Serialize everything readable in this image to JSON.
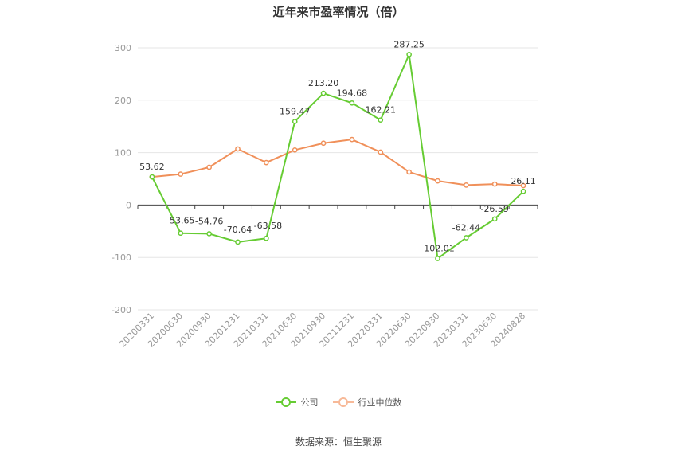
{
  "chart_data": {
    "type": "line",
    "title": "近年来市盈率情况（倍）",
    "categories": [
      "20200331",
      "20200630",
      "20200930",
      "20201231",
      "20210331",
      "20210630",
      "20210930",
      "20211231",
      "20220331",
      "20220630",
      "20220930",
      "20230331",
      "20230630",
      "20240828"
    ],
    "ylim": [
      -200,
      300
    ],
    "yticks": [
      -200,
      -100,
      0,
      100,
      200,
      300
    ],
    "grid": true,
    "legend_position": "bottom-center",
    "series": [
      {
        "name": "公司",
        "color": "#66cc33",
        "values": [
          53.62,
          -53.65,
          -54.76,
          -70.64,
          -63.58,
          159.47,
          213.2,
          194.68,
          162.21,
          287.25,
          -102.01,
          -62.44,
          -26.59,
          26.11
        ],
        "labels": [
          "53.62",
          "-53.65",
          "-54.76",
          "-70.64",
          "-63.58",
          "159.47",
          "213.20",
          "194.68",
          "162.21",
          "287.25",
          "-102.01",
          "-62.44",
          "-26.59",
          "26.11"
        ]
      },
      {
        "name": "行业中位数",
        "color": "#f0905a",
        "values": [
          53.6,
          59,
          72,
          107,
          81,
          105,
          118,
          125,
          101,
          63,
          46,
          38,
          40,
          37
        ]
      }
    ],
    "source": "数据来源：恒生聚源"
  }
}
